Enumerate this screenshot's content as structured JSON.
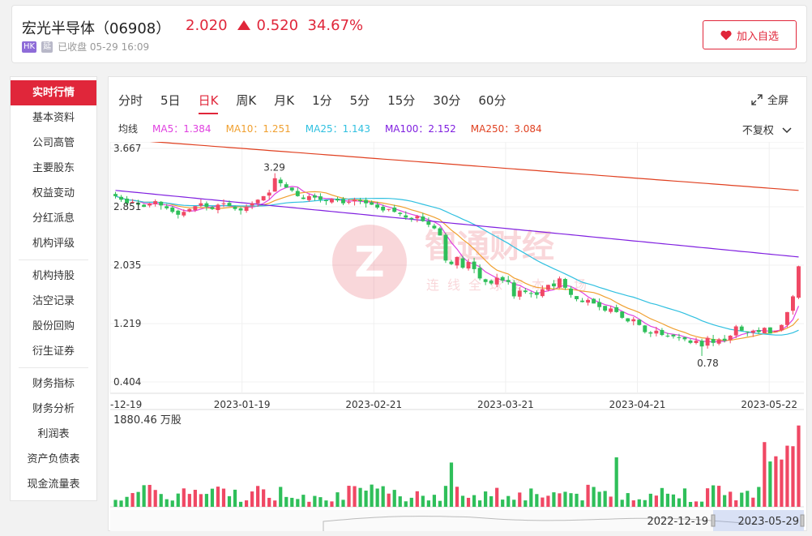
{
  "header": {
    "name": "宏光半导体（06908）",
    "price": "2.020",
    "change": "0.520",
    "pct": "34.67%",
    "badge_hk": "HK",
    "badge_yan": "延",
    "status": "已收盘 05-29 16:09",
    "add_label": "加入自选"
  },
  "sidebar": {
    "groups": [
      [
        "实时行情",
        "基本资料",
        "公司高管",
        "主要股东",
        "权益变动",
        "分红派息",
        "机构评级"
      ],
      [
        "机构持股",
        "沽空记录",
        "股份回购",
        "衍生证券"
      ],
      [
        "财务指标",
        "财务分析",
        "利润表",
        "资产负债表",
        "现金流量表"
      ]
    ]
  },
  "chart": {
    "tabs": [
      "分时",
      "5日",
      "日K",
      "周K",
      "月K",
      "1分",
      "5分",
      "15分",
      "30分",
      "60分"
    ],
    "active_tab": "日K",
    "fullscreen_label": "全屏",
    "fq_label": "不复权",
    "ma_title": "均线",
    "ma": [
      {
        "label": "MA5：1.384",
        "color": "#e040e0"
      },
      {
        "label": "MA10：1.251",
        "color": "#f0a030"
      },
      {
        "label": "MA25：1.143",
        "color": "#30c0e0"
      },
      {
        "label": "MA100：2.152",
        "color": "#8020e0"
      },
      {
        "label": "MA250：3.084",
        "color": "#e04020"
      }
    ],
    "volume_label": "1880.46 万股",
    "watermark_main": "智通财经",
    "watermark_sub": "连线全球资本市场",
    "range_start": "2022-12-19",
    "range_end": "2023-05-29"
  },
  "chart_data": {
    "type": "candlestick",
    "y_ticks": [
      "3.667",
      "2.851",
      "2.035",
      "1.219",
      "0.404"
    ],
    "ylim": [
      0.404,
      3.667
    ],
    "x_ticks": [
      "-12-19",
      "2023-01-19",
      "2023-02-21",
      "2023-03-21",
      "2023-04-21",
      "2023-05-22"
    ],
    "annotations": [
      {
        "text": "3.29"
      },
      {
        "text": "0.78"
      }
    ],
    "close": [
      3.0,
      2.95,
      2.9,
      2.92,
      2.88,
      2.85,
      2.9,
      2.93,
      2.87,
      2.83,
      2.78,
      2.74,
      2.78,
      2.82,
      2.86,
      2.9,
      2.85,
      2.82,
      2.88,
      2.9,
      2.86,
      2.82,
      2.8,
      2.85,
      2.9,
      2.95,
      3.0,
      3.05,
      3.25,
      3.18,
      3.12,
      3.08,
      3.0,
      2.96,
      3.0,
      2.98,
      2.95,
      2.93,
      2.96,
      2.94,
      2.9,
      2.92,
      2.95,
      2.93,
      2.9,
      2.88,
      2.84,
      2.8,
      2.82,
      2.78,
      2.75,
      2.7,
      2.68,
      2.72,
      2.65,
      2.6,
      2.55,
      2.45,
      2.1,
      2.05,
      2.15,
      2.0,
      2.08,
      1.98,
      1.85,
      1.8,
      1.78,
      1.86,
      1.82,
      1.8,
      1.6,
      1.68,
      1.66,
      1.64,
      1.62,
      1.7,
      1.76,
      1.74,
      1.85,
      1.72,
      1.62,
      1.56,
      1.52,
      1.55,
      1.5,
      1.45,
      1.4,
      1.43,
      1.38,
      1.3,
      1.25,
      1.28,
      1.2,
      1.1,
      1.08,
      1.12,
      1.06,
      1.05,
      1.04,
      1.02,
      1.0,
      0.95,
      0.98,
      0.9,
      1.02,
      0.95,
      1.0,
      0.98,
      1.05,
      1.18,
      1.12,
      1.1,
      1.12,
      1.1,
      1.16,
      1.08,
      1.12,
      1.2,
      1.38,
      1.6,
      2.02
    ],
    "volume_max": 1880.46
  }
}
